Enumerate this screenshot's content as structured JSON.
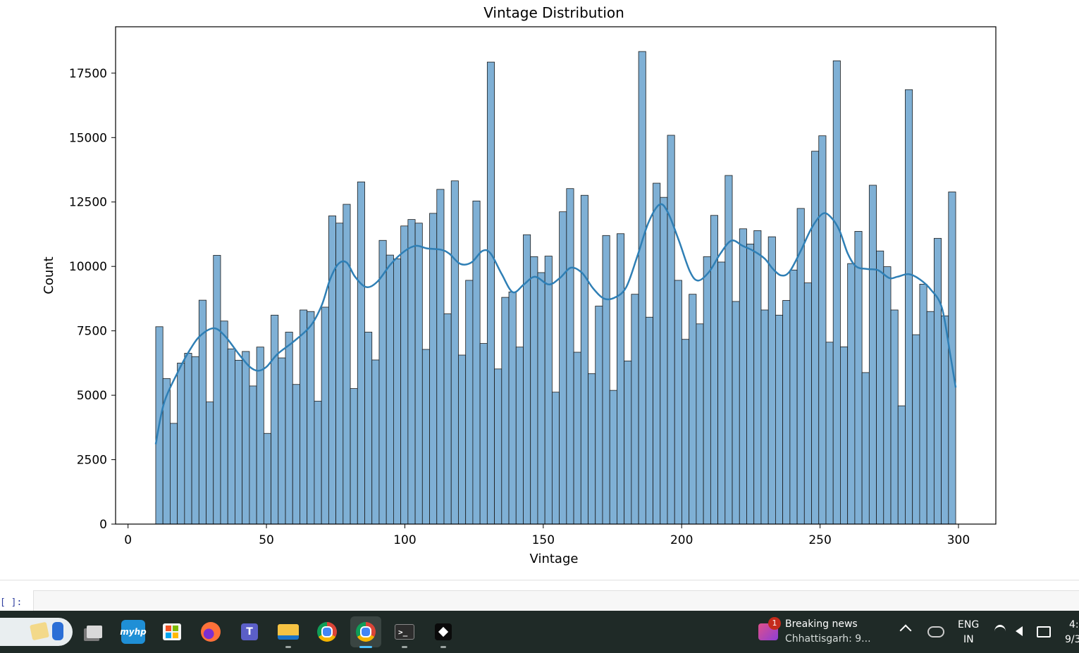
{
  "chart_data": {
    "type": "bar",
    "title": "Vintage Distribution",
    "xlabel": "Vintage",
    "ylabel": "Count",
    "xlim": [
      -4.5,
      313.5
    ],
    "ylim": [
      0,
      19300
    ],
    "x_ticks": [
      0,
      50,
      100,
      150,
      200,
      250,
      300
    ],
    "y_ticks": [
      0,
      2500,
      5000,
      7500,
      10000,
      12500,
      15000,
      17500
    ],
    "bin_range": [
      10,
      299
    ],
    "bar_color": "#7fb0d5",
    "kde_color": "#2f7fb5",
    "values": [
      7660,
      5650,
      3910,
      6250,
      6630,
      6500,
      8690,
      4740,
      10430,
      7880,
      6800,
      6360,
      6700,
      5360,
      6870,
      3520,
      8110,
      6450,
      7450,
      5420,
      8310,
      8250,
      4770,
      8420,
      11960,
      11680,
      12410,
      5260,
      13280,
      7450,
      6370,
      11010,
      10440,
      10290,
      11570,
      11820,
      11680,
      6780,
      12060,
      12990,
      8160,
      13320,
      6560,
      9460,
      12540,
      7010,
      17930,
      6020,
      8800,
      9010,
      6870,
      11230,
      10380,
      9760,
      10400,
      5120,
      12120,
      13020,
      6670,
      12760,
      5840,
      8460,
      11200,
      5190,
      11270,
      6330,
      8920,
      18340,
      8030,
      13230,
      12680,
      15090,
      9460,
      7170,
      8920,
      7770,
      10380,
      11980,
      10170,
      13530,
      8640,
      11460,
      10870,
      11390,
      8310,
      11150,
      8110,
      8680,
      9860,
      12250,
      9360,
      14470,
      15070,
      7060,
      17980,
      6880,
      10110,
      11360,
      5880,
      13150,
      10600,
      9990,
      8310,
      4590,
      16860,
      7350,
      9310,
      8250,
      11090,
      8080,
      12890
    ],
    "kde": [
      [
        10,
        3100
      ],
      [
        13,
        4700
      ],
      [
        18,
        5900
      ],
      [
        22,
        6700
      ],
      [
        26,
        7300
      ],
      [
        31,
        7600
      ],
      [
        35,
        7300
      ],
      [
        40,
        6600
      ],
      [
        44,
        6100
      ],
      [
        47,
        5950
      ],
      [
        50,
        6100
      ],
      [
        54,
        6600
      ],
      [
        60,
        7100
      ],
      [
        66,
        7700
      ],
      [
        70,
        8500
      ],
      [
        73,
        9500
      ],
      [
        76,
        10100
      ],
      [
        79,
        10150
      ],
      [
        82,
        9600
      ],
      [
        86,
        9200
      ],
      [
        90,
        9400
      ],
      [
        95,
        10100
      ],
      [
        100,
        10600
      ],
      [
        104,
        10800
      ],
      [
        108,
        10700
      ],
      [
        113,
        10650
      ],
      [
        116,
        10500
      ],
      [
        120,
        10100
      ],
      [
        124,
        10150
      ],
      [
        128,
        10600
      ],
      [
        131,
        10500
      ],
      [
        135,
        9700
      ],
      [
        139,
        9000
      ],
      [
        143,
        9300
      ],
      [
        147,
        9600
      ],
      [
        152,
        9300
      ],
      [
        156,
        9550
      ],
      [
        160,
        9950
      ],
      [
        164,
        9750
      ],
      [
        168,
        9150
      ],
      [
        172,
        8750
      ],
      [
        176,
        8800
      ],
      [
        180,
        9200
      ],
      [
        184,
        10400
      ],
      [
        188,
        11700
      ],
      [
        192,
        12400
      ],
      [
        195,
        12100
      ],
      [
        199,
        11000
      ],
      [
        203,
        9800
      ],
      [
        206,
        9450
      ],
      [
        210,
        9800
      ],
      [
        214,
        10500
      ],
      [
        218,
        11000
      ],
      [
        222,
        10800
      ],
      [
        226,
        10600
      ],
      [
        230,
        10300
      ],
      [
        233,
        9900
      ],
      [
        236,
        9650
      ],
      [
        239,
        9800
      ],
      [
        243,
        10600
      ],
      [
        247,
        11500
      ],
      [
        251,
        12050
      ],
      [
        254,
        11900
      ],
      [
        257,
        11400
      ],
      [
        260,
        10500
      ],
      [
        263,
        10000
      ],
      [
        267,
        9900
      ],
      [
        271,
        9850
      ],
      [
        275,
        9550
      ],
      [
        278,
        9600
      ],
      [
        282,
        9700
      ],
      [
        286,
        9500
      ],
      [
        290,
        9100
      ],
      [
        294,
        8400
      ],
      [
        297,
        6600
      ],
      [
        299,
        5300
      ]
    ]
  },
  "jupyter": {
    "prompt": "[ ]:"
  },
  "taskbar": {
    "news_title": "Breaking news",
    "news_subtitle": "Chhattisgarh: 9...",
    "news_badge": "1",
    "lang_line1": "ENG",
    "lang_line2": "IN",
    "clock_line1": "4:",
    "clock_line2": "9/3"
  }
}
